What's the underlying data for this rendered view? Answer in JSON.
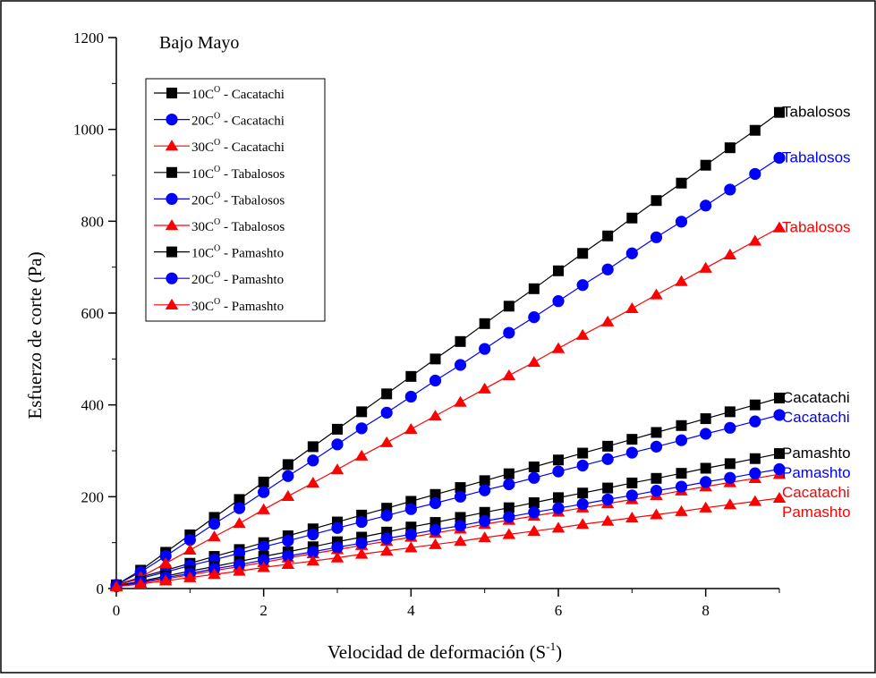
{
  "chart_data": {
    "type": "line",
    "title": "Bajo Mayo",
    "xlabel": "Velocidad de deformación (S",
    "xlabel_sup": "-1",
    "xlabel_end": ")",
    "ylabel": "Esfuerzo de corte (Pa)",
    "xlim": [
      0,
      9
    ],
    "ylim": [
      0,
      1200
    ],
    "x_ticks": [
      0,
      2,
      4,
      6,
      8
    ],
    "y_ticks": [
      0,
      200,
      400,
      600,
      800,
      1000,
      1200
    ],
    "grid": false,
    "legend_position": "top-left",
    "x": [
      0.0,
      0.33,
      0.67,
      1.0,
      1.33,
      1.67,
      2.0,
      2.33,
      2.67,
      3.0,
      3.33,
      3.67,
      4.0,
      4.33,
      4.67,
      5.0,
      5.33,
      5.67,
      6.0,
      6.33,
      6.67,
      7.0,
      7.33,
      7.67,
      8.0,
      8.33,
      8.67,
      9.0
    ],
    "series": [
      {
        "name_main": "10C",
        "name_sup": "O",
        "name_rest": " - Cacatachi",
        "color": "#000000",
        "marker": "square",
        "values": [
          8,
          25,
          40,
          55,
          70,
          85,
          100,
          115,
          130,
          145,
          160,
          175,
          190,
          205,
          220,
          235,
          250,
          265,
          280,
          295,
          310,
          325,
          340,
          355,
          370,
          385,
          400,
          415
        ]
      },
      {
        "name_main": "20C",
        "name_sup": "O",
        "name_rest": " - Cacatachi",
        "color": "#0000ff",
        "marker": "circle",
        "values": [
          7,
          22,
          36,
          50,
          63,
          77,
          91,
          104,
          118,
          132,
          145,
          159,
          173,
          186,
          200,
          214,
          227,
          241,
          255,
          268,
          282,
          296,
          309,
          323,
          337,
          350,
          364,
          378
        ]
      },
      {
        "name_main": "30C",
        "name_sup": "O",
        "name_rest": " - Cacatachi",
        "color": "#ff0000",
        "marker": "triangle",
        "values": [
          5,
          12,
          21,
          30,
          39,
          48,
          57,
          67,
          76,
          85,
          94,
          103,
          112,
          121,
          130,
          140,
          149,
          158,
          167,
          176,
          185,
          194,
          203,
          213,
          222,
          231,
          240,
          249
        ]
      },
      {
        "name_main": "10C",
        "name_sup": "O",
        "name_rest": " - Tabalosos",
        "color": "#000000",
        "marker": "square",
        "values": [
          8,
          40,
          79,
          117,
          155,
          194,
          232,
          270,
          309,
          347,
          385,
          424,
          462,
          500,
          538,
          577,
          615,
          653,
          692,
          730,
          768,
          807,
          845,
          883,
          922,
          960,
          998,
          1037
        ]
      },
      {
        "name_main": "20C",
        "name_sup": "O",
        "name_rest": " - Tabalosos",
        "color": "#0000ff",
        "marker": "circle",
        "values": [
          8,
          36,
          71,
          106,
          141,
          175,
          210,
          245,
          279,
          314,
          349,
          383,
          418,
          453,
          487,
          522,
          557,
          591,
          626,
          661,
          695,
          730,
          765,
          799,
          834,
          869,
          903,
          938
        ]
      },
      {
        "name_main": "30C",
        "name_sup": "O",
        "name_rest": " - Tabalosos",
        "color": "#ff0000",
        "marker": "triangle",
        "values": [
          6,
          25,
          55,
          84,
          113,
          142,
          172,
          201,
          230,
          259,
          289,
          318,
          347,
          376,
          406,
          435,
          464,
          493,
          523,
          552,
          581,
          610,
          640,
          669,
          698,
          727,
          757,
          786
        ]
      },
      {
        "name_main": "10C",
        "name_sup": "O",
        "name_rest": " - Pamashto",
        "color": "#000000",
        "marker": "square",
        "values": [
          6,
          16,
          27,
          38,
          48,
          59,
          70,
          80,
          91,
          102,
          112,
          123,
          134,
          144,
          155,
          166,
          176,
          187,
          198,
          208,
          219,
          230,
          240,
          251,
          262,
          272,
          283,
          294
        ]
      },
      {
        "name_main": "20C",
        "name_sup": "O",
        "name_rest": " - Pamashto",
        "color": "#0000ff",
        "marker": "circle",
        "values": [
          5,
          14,
          24,
          33,
          43,
          52,
          62,
          71,
          80,
          90,
          99,
          109,
          118,
          128,
          137,
          147,
          156,
          166,
          175,
          184,
          194,
          203,
          213,
          222,
          232,
          241,
          251,
          260
        ]
      },
      {
        "name_main": "30C",
        "name_sup": "O",
        "name_rest": " - Pamashto",
        "color": "#ff0000",
        "marker": "triangle",
        "values": [
          4,
          10,
          17,
          24,
          31,
          38,
          46,
          53,
          60,
          67,
          75,
          82,
          89,
          96,
          103,
          111,
          118,
          125,
          132,
          140,
          147,
          154,
          161,
          168,
          176,
          183,
          190,
          197
        ]
      }
    ],
    "annotations": [
      {
        "text": "Tabalosos",
        "color": "#000000",
        "at_value": 1037
      },
      {
        "text": "Tabalosos",
        "color": "#0000ff",
        "at_value": 938
      },
      {
        "text": "Tabalosos",
        "color": "#ff0000",
        "at_value": 786
      },
      {
        "text": "Cacatachi",
        "color": "#000000",
        "at_value": 415
      },
      {
        "text": "Cacatachi",
        "color": "#0000ff",
        "at_value": 378
      },
      {
        "text": "Pamashto",
        "color": "#000000",
        "at_value": 294
      },
      {
        "text": "Pamashto",
        "color": "#0000ff",
        "at_value": 260
      },
      {
        "text": "Cacatachi",
        "color": "#ff0000",
        "at_value": 249
      },
      {
        "text": "Pamashto",
        "color": "#ff0000",
        "at_value": 197
      }
    ]
  }
}
